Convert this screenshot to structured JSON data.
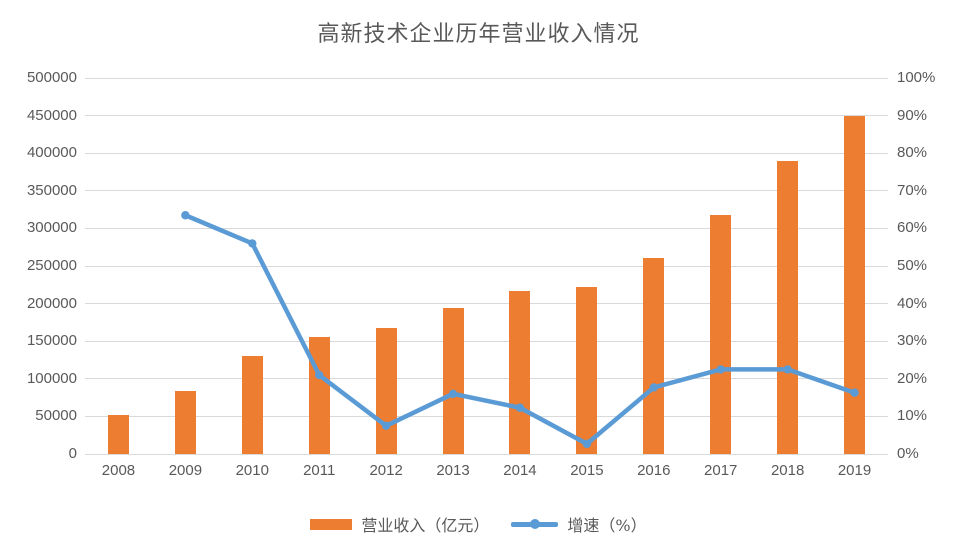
{
  "title": "高新技术企业历年营业收入情况",
  "colors": {
    "bar": "#ED7D31",
    "line": "#5B9BD5",
    "grid": "#D9D9D9",
    "axis_text": "#595959"
  },
  "chart_data": {
    "type": "bar",
    "subtype": "combo-bar-line-dual-axis",
    "title": "高新技术企业历年营业收入情况",
    "categories": [
      "2008",
      "2009",
      "2010",
      "2011",
      "2012",
      "2013",
      "2014",
      "2015",
      "2016",
      "2017",
      "2018",
      "2019"
    ],
    "series": [
      {
        "name": "营业收入（亿元）",
        "type": "bar",
        "axis": "left",
        "color": "#ED7D31",
        "values": [
          51500,
          84000,
          130500,
          156000,
          167000,
          194500,
          216500,
          222500,
          261000,
          318000,
          390000,
          450000
        ]
      },
      {
        "name": "增速（%）",
        "type": "line",
        "axis": "right",
        "color": "#5B9BD5",
        "values": [
          null,
          63.5,
          56,
          21,
          7.5,
          16,
          12.3,
          2.7,
          17.7,
          22.5,
          22.5,
          16.3
        ]
      }
    ],
    "left_axis": {
      "min": 0,
      "max": 500000,
      "step": 50000,
      "tick_labels": [
        "0",
        "50000",
        "100000",
        "150000",
        "200000",
        "250000",
        "300000",
        "350000",
        "400000",
        "450000",
        "500000"
      ]
    },
    "right_axis": {
      "min": 0,
      "max": 100,
      "step": 10,
      "tick_labels": [
        "0%",
        "10%",
        "20%",
        "30%",
        "40%",
        "50%",
        "60%",
        "70%",
        "80%",
        "90%",
        "100%"
      ]
    },
    "grid": true,
    "legend_position": "bottom",
    "legend": [
      {
        "label": "营业收入（亿元）",
        "swatch": "bar"
      },
      {
        "label": "增速（%）",
        "swatch": "line"
      }
    ]
  }
}
